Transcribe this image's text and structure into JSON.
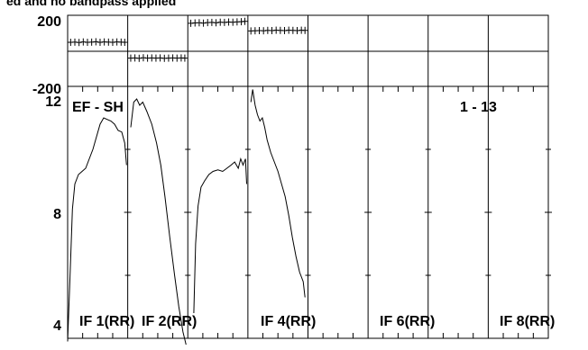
{
  "chart_data": {
    "title": "ed and no bandpass applied",
    "baseline_label": "EF - SH",
    "channel_range_label": "1 - 13",
    "top_panel": {
      "type": "scatter",
      "ylim": [
        -200,
        200
      ],
      "yticks": [
        "200",
        "-200"
      ],
      "reference_value": 0,
      "series": [
        {
          "if": 1,
          "x": [
            0.05,
            0.12,
            0.19,
            0.26,
            0.33,
            0.4,
            0.47,
            0.54,
            0.61,
            0.68,
            0.75,
            0.82,
            0.89,
            0.95
          ],
          "y": [
            48,
            49,
            47,
            50,
            48,
            49,
            51,
            48,
            50,
            49,
            48,
            50,
            49,
            48
          ]
        },
        {
          "if": 2,
          "x": [
            0.05,
            0.12,
            0.19,
            0.26,
            0.33,
            0.4,
            0.47,
            0.54,
            0.61,
            0.68,
            0.75,
            0.82,
            0.89,
            0.95
          ],
          "y": [
            -41,
            -40,
            -42,
            -39,
            -41,
            -40,
            -41,
            -40,
            -42,
            -41,
            -40,
            -41,
            -40,
            -41
          ]
        },
        {
          "if": 3,
          "x": [
            0.05,
            0.12,
            0.19,
            0.26,
            0.33,
            0.4,
            0.47,
            0.54,
            0.61,
            0.68,
            0.75,
            0.82,
            0.89,
            0.95
          ],
          "y": [
            155,
            157,
            158,
            156,
            159,
            160,
            158,
            161,
            160,
            162,
            161,
            163,
            164,
            166
          ]
        },
        {
          "if": 4,
          "x": [
            0.05,
            0.12,
            0.19,
            0.26,
            0.33,
            0.4,
            0.47,
            0.54,
            0.61,
            0.68,
            0.75,
            0.82,
            0.89,
            0.95
          ],
          "y": [
            112,
            113,
            114,
            113,
            115,
            114,
            116,
            115,
            114,
            116,
            115,
            114,
            116,
            115
          ]
        }
      ]
    },
    "bottom_panel": {
      "type": "line",
      "ylim": [
        4,
        12
      ],
      "yticks": [
        "4",
        "8",
        "12"
      ],
      "series": [
        {
          "if": 1,
          "x": [
            0.0,
            0.04,
            0.08,
            0.12,
            0.18,
            0.24,
            0.3,
            0.36,
            0.42,
            0.48,
            0.54,
            0.6,
            0.66,
            0.72,
            0.78,
            0.84,
            0.9,
            0.95,
            0.98
          ],
          "y": [
            3.9,
            6.0,
            8.1,
            8.9,
            9.2,
            9.3,
            9.4,
            9.7,
            10.0,
            10.4,
            10.8,
            11.0,
            10.95,
            10.9,
            10.8,
            10.6,
            10.55,
            10.2,
            9.5
          ]
        },
        {
          "if": 2,
          "x": [
            0.05,
            0.1,
            0.15,
            0.2,
            0.25,
            0.32,
            0.4,
            0.48,
            0.55,
            0.62,
            0.7,
            0.78,
            0.85,
            0.92,
            0.97
          ],
          "y": [
            10.7,
            11.5,
            11.6,
            11.4,
            11.5,
            11.2,
            10.8,
            10.2,
            9.5,
            8.5,
            7.2,
            6.0,
            5.0,
            4.2,
            3.8
          ]
        },
        {
          "if": 3,
          "x": [
            0.1,
            0.13,
            0.17,
            0.22,
            0.28,
            0.35,
            0.42,
            0.5,
            0.58,
            0.65,
            0.72,
            0.78,
            0.84,
            0.88,
            0.92,
            0.96,
            0.98
          ],
          "y": [
            4.8,
            7.0,
            8.2,
            8.8,
            9.0,
            9.2,
            9.3,
            9.35,
            9.3,
            9.4,
            9.5,
            9.6,
            9.4,
            9.7,
            9.5,
            9.7,
            8.9
          ]
        },
        {
          "if": 4,
          "x": [
            0.05,
            0.08,
            0.12,
            0.16,
            0.2,
            0.24,
            0.28,
            0.32,
            0.38,
            0.44,
            0.5,
            0.56,
            0.62,
            0.68,
            0.74,
            0.8,
            0.86,
            0.92,
            0.95
          ],
          "y": [
            11.5,
            11.9,
            11.4,
            11.1,
            10.9,
            11.0,
            10.7,
            10.3,
            9.9,
            9.6,
            9.3,
            8.9,
            8.5,
            7.9,
            7.2,
            6.6,
            6.1,
            5.8,
            5.3
          ]
        }
      ],
      "if_labels": [
        "IF 1(RR)",
        "IF 2(RR)",
        "IF 4(RR)",
        "IF 6(RR)",
        "IF 8(RR)"
      ]
    }
  }
}
